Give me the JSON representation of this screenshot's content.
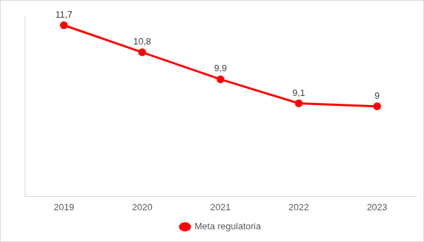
{
  "chart_data": {
    "type": "line",
    "categories": [
      "2019",
      "2020",
      "2021",
      "2022",
      "2023"
    ],
    "series": [
      {
        "name": "Meta regulatoria",
        "color": "#ff0000",
        "values": [
          11.7,
          10.8,
          9.9,
          9.1,
          9
        ],
        "value_labels": [
          "11,7",
          "10,8",
          "9,9",
          "9,1",
          "9"
        ],
        "marker": "circle",
        "line_style": "solid"
      }
    ],
    "ylim": [
      6,
      12
    ],
    "grid": false,
    "legend": "bottom",
    "data_labels": true,
    "tick_labels": "x"
  }
}
